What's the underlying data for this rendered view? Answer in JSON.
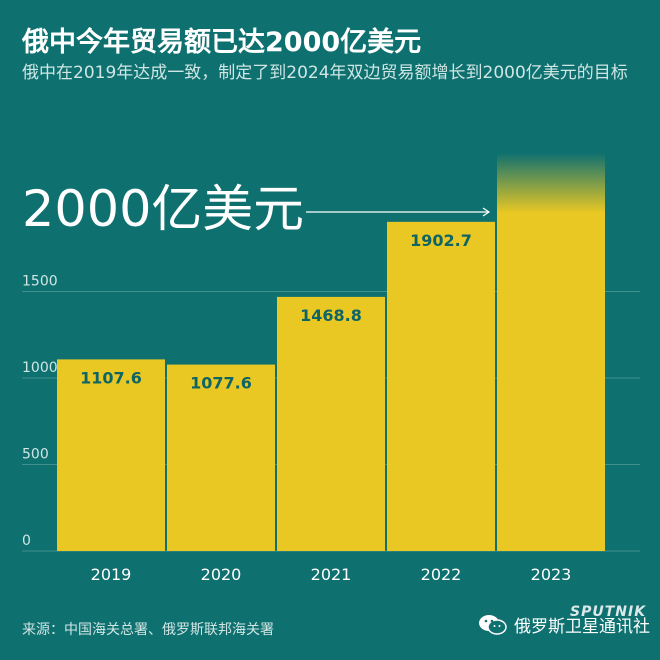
{
  "header": {
    "title": "俄中今年贸易额已达2000亿美元",
    "subtitle": "俄中在2019年达成一致，制定了到2024年双边贸易额增长到2000亿美元的目标"
  },
  "footer": {
    "source": "来源：中国海关总署、俄罗斯联邦海关署",
    "brand": "俄罗斯卫星通讯社",
    "logo_text": "SPUTNIK"
  },
  "colors": {
    "background": "#0f7070",
    "bar": "#e9c824",
    "bar_label": "#0f6464",
    "grid": "#3f8f8c"
  },
  "chart_data": {
    "type": "bar",
    "categories": [
      "2019",
      "2020",
      "2021",
      "2022",
      "2023"
    ],
    "values": [
      1107.6,
      1077.6,
      1468.8,
      1902.7,
      2000
    ],
    "data_labels": [
      "1107.6",
      "1077.6",
      "1468.8",
      "1902.7",
      ""
    ],
    "y_ticks": [
      0,
      500,
      1000,
      1500
    ],
    "ylim": [
      0,
      2000
    ],
    "grid": true,
    "target": {
      "value": 2000,
      "label": "2000亿美元",
      "points_to": "2023"
    }
  }
}
